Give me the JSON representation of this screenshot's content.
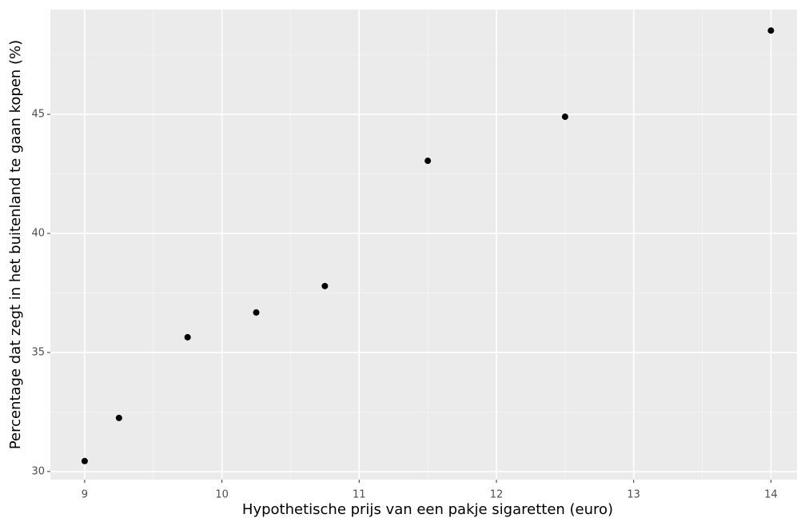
{
  "chart_data": {
    "type": "scatter",
    "x_label": "Hypothetische prijs van een pakje sigaretten (euro)",
    "y_label": "Percentage dat zegt in het buitenland te gaan kopen (%)",
    "x": [
      9,
      9.25,
      9.75,
      10.25,
      10.75,
      11.5,
      12.5,
      14
    ],
    "values": [
      30.44,
      32.25,
      35.64,
      36.68,
      37.79,
      43.05,
      44.9,
      48.52
    ],
    "color": "#000000",
    "xlim": [
      8.75,
      14.19
    ],
    "ylim": [
      29.66,
      49.4
    ],
    "xticks": [
      9,
      10,
      11,
      12,
      13,
      14
    ],
    "yticks": [
      30,
      35,
      40,
      45
    ],
    "xminor": [
      9.5,
      10.5,
      11.5,
      12.5,
      13.5
    ],
    "yminor": [
      32.5,
      37.5,
      42.5,
      47.5
    ],
    "grid": true
  }
}
